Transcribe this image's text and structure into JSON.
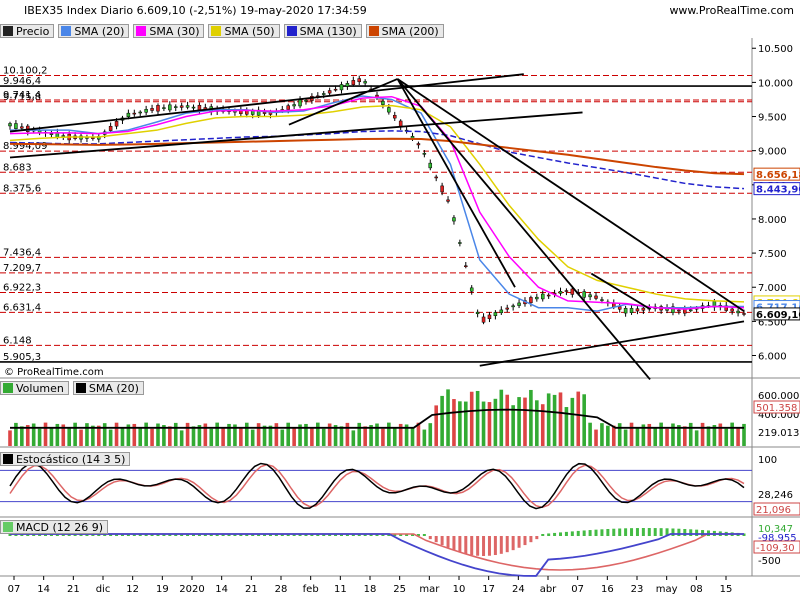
{
  "header": {
    "title": "IBEX35 Index Diario 6.609,10 (-2,51%) 19-may-2020 17:34:59",
    "site": "www.ProRealTime.com",
    "copyright": "© ProRealTime.com"
  },
  "price_legend": [
    {
      "label": "Precio",
      "color": "#222222"
    },
    {
      "label": "SMA (20)",
      "color": "#4a86e8"
    },
    {
      "label": "SMA (30)",
      "color": "#ff00ff"
    },
    {
      "label": "SMA (50)",
      "color": "#e0d000"
    },
    {
      "label": "SMA (130)",
      "color": "#2222cc"
    },
    {
      "label": "SMA (200)",
      "color": "#cc4400"
    }
  ],
  "left_levels": [
    {
      "text": "10.100,2",
      "value": 10100.2
    },
    {
      "text": "9.946,4",
      "value": 9946.4
    },
    {
      "text": "9.715,8",
      "value": 9715.8
    },
    {
      "text": "9.741,4",
      "value": 9741.4
    },
    {
      "text": "8.994,09",
      "value": 8994.09
    },
    {
      "text": "8.683",
      "value": 8683
    },
    {
      "text": "8.375,6",
      "value": 8375.6
    },
    {
      "text": "7.436,4",
      "value": 7436.4
    },
    {
      "text": "7.209,7",
      "value": 7209.7
    },
    {
      "text": "6.922,3",
      "value": 6922.3
    },
    {
      "text": "6.631,4",
      "value": 6631.4
    },
    {
      "text": "6.148",
      "value": 6148
    },
    {
      "text": "5.905,3",
      "value": 5905.3
    }
  ],
  "right_price_ticks": [
    "10.500",
    "10.000",
    "9.500",
    "9.000",
    "8.500",
    "8.000",
    "7.500",
    "7.000",
    "6.500",
    "6.000"
  ],
  "right_price_tags": [
    {
      "text": "8.656,18",
      "color": "#cc4400",
      "value": 8656.18
    },
    {
      "text": "8.443,90",
      "color": "#2222cc",
      "value": 8443.9
    },
    {
      "text": "6.784,69",
      "color": "#e0d000",
      "value": 6784.69
    },
    {
      "text": "6.717,16",
      "color": "#4a86e8",
      "value": 6717.16
    },
    {
      "text": "6.609,10",
      "color": "#000000",
      "value": 6609.1
    }
  ],
  "volume": {
    "label": "Volumen",
    "sma_label": "SMA (20)",
    "ticks": [
      "600.000",
      "400.000"
    ],
    "tag_current": "501.358",
    "tag_sma": "219.013"
  },
  "stochastic": {
    "label": "Estocástico (14 3 5)",
    "ticks": [
      "100",
      "0"
    ],
    "tag_k": "28,246",
    "tag_d": "21,096"
  },
  "macd": {
    "label": "MACD (12 26 9)",
    "ticks": [
      "-500"
    ],
    "tag_hist": "10,347",
    "tag_signal": "-98,955",
    "tag_macd": "-109,30"
  },
  "x_labels": [
    "07",
    "14",
    "21",
    "dic",
    "12",
    "19",
    "2020",
    "14",
    "21",
    "28",
    "feb",
    "11",
    "18",
    "25",
    "mar",
    "10",
    "17",
    "24",
    "abr",
    "07",
    "16",
    "23",
    "may",
    "08",
    "15"
  ],
  "chart_data": {
    "type": "line",
    "title": "IBEX35 Index Diario 6.609,10 (-2,51%) 19-may-2020 17:34:59",
    "x": [
      "nov-07",
      "nov-14",
      "nov-21",
      "dic",
      "dic-12",
      "dic-19",
      "2020",
      "ene-14",
      "ene-21",
      "ene-28",
      "feb",
      "feb-11",
      "feb-18",
      "feb-25",
      "mar",
      "mar-10",
      "mar-17",
      "mar-24",
      "abr",
      "abr-07",
      "abr-16",
      "abr-23",
      "may",
      "may-08",
      "may-15",
      "may-19"
    ],
    "series": [
      {
        "name": "Precio",
        "values": [
          9380,
          9280,
          9200,
          9180,
          9520,
          9620,
          9650,
          9600,
          9560,
          9550,
          9720,
          9880,
          10050,
          9550,
          9050,
          8200,
          6500,
          6700,
          6850,
          6950,
          6850,
          6650,
          6700,
          6650,
          6750,
          6609.1
        ]
      },
      {
        "name": "SMA (20)",
        "values": [
          9300,
          9300,
          9300,
          9250,
          9300,
          9420,
          9550,
          9600,
          9600,
          9560,
          9580,
          9700,
          9800,
          9750,
          9550,
          8800,
          7400,
          6900,
          6700,
          6700,
          6650,
          6750,
          6700,
          6700,
          6720,
          6717.16
        ]
      },
      {
        "name": "SMA (30)",
        "values": [
          9250,
          9260,
          9260,
          9250,
          9280,
          9380,
          9500,
          9580,
          9590,
          9580,
          9600,
          9660,
          9770,
          9790,
          9650,
          9150,
          8100,
          7450,
          7000,
          6800,
          6780,
          6760,
          6700,
          6680,
          6720,
          6700
        ]
      },
      {
        "name": "SMA (50)",
        "values": [
          9150,
          9180,
          9200,
          9200,
          9250,
          9300,
          9400,
          9480,
          9500,
          9500,
          9520,
          9570,
          9640,
          9660,
          9600,
          9350,
          8800,
          8200,
          7700,
          7300,
          7100,
          7000,
          6900,
          6830,
          6800,
          6784.69
        ]
      },
      {
        "name": "SMA (130)",
        "values": [
          9120,
          9110,
          9100,
          9100,
          9120,
          9140,
          9160,
          9180,
          9200,
          9210,
          9230,
          9250,
          9280,
          9290,
          9280,
          9220,
          9100,
          8980,
          8900,
          8820,
          8750,
          8680,
          8600,
          8520,
          8470,
          8443.9
        ]
      },
      {
        "name": "SMA (200)",
        "values": [
          9100,
          9095,
          9090,
          9085,
          9090,
          9100,
          9110,
          9120,
          9130,
          9140,
          9150,
          9160,
          9170,
          9175,
          9170,
          9140,
          9090,
          9040,
          8990,
          8940,
          8880,
          8820,
          8760,
          8710,
          8670,
          8656.18
        ]
      }
    ],
    "ylim": [
      5700,
      10650
    ],
    "ylabel": ""
  }
}
